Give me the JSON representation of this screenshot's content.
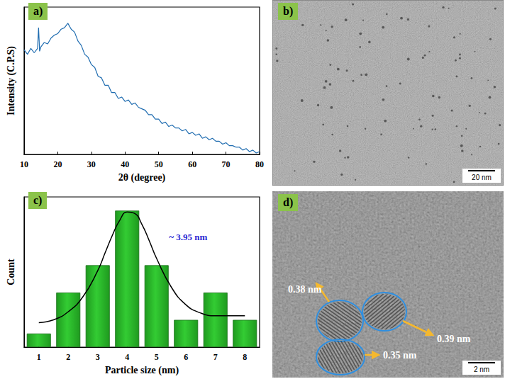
{
  "chart_data": [
    {
      "type": "line",
      "panel_label": "a)",
      "xlabel": "2θ (degree)",
      "ylabel": "Intensity (C.P.S)",
      "x": [
        10,
        11,
        12,
        13,
        14,
        14.3,
        14.6,
        15,
        16,
        17,
        18,
        19,
        20,
        21,
        22,
        23,
        24,
        25,
        26,
        27,
        28,
        29,
        30,
        31,
        32,
        33,
        34,
        35,
        36,
        37,
        38,
        39,
        40,
        41,
        42,
        43,
        44,
        45,
        46,
        47,
        48,
        49,
        50,
        51,
        52,
        53,
        54,
        55,
        56,
        57,
        58,
        59,
        60,
        61,
        62,
        63,
        64,
        65,
        66,
        67,
        68,
        69,
        70,
        71,
        72,
        73,
        74,
        75,
        76,
        77,
        78,
        79,
        80
      ],
      "values": [
        71,
        68,
        72,
        69,
        72,
        86,
        70,
        73,
        76,
        75,
        79,
        81,
        82,
        85,
        86,
        89,
        85,
        83,
        77,
        74,
        68,
        66,
        61,
        59,
        53,
        52,
        47,
        47,
        42,
        42,
        38,
        39,
        36,
        37,
        34,
        35,
        32,
        31,
        30,
        27,
        27,
        24,
        24,
        21,
        22,
        19,
        20,
        18,
        18,
        16,
        17,
        14,
        15,
        13,
        14,
        11,
        12,
        10,
        11,
        9,
        9,
        7,
        8,
        6,
        6,
        5,
        5,
        3,
        4,
        2,
        3,
        1,
        2
      ],
      "color": "#1f6cb0",
      "xlim": [
        10,
        80
      ],
      "xticks": [
        10,
        20,
        30,
        40,
        50,
        60,
        70,
        80
      ],
      "ylim": [
        0,
        100
      ],
      "tick_labels": "x",
      "grid": false
    },
    {
      "type": "bar",
      "panel_label": "c)",
      "xlabel": "Particle size (nm)",
      "ylabel": "Count",
      "annotation": "~ 3.95 nm",
      "series": [
        {
          "type": "bar",
          "x": [
            1,
            2,
            3,
            4,
            5,
            6,
            7,
            8
          ],
          "values": [
            1,
            4,
            6,
            10,
            6,
            2,
            4,
            2
          ],
          "color": "#33cc33"
        },
        {
          "type": "line",
          "x": [
            1,
            1.5,
            2,
            2.5,
            3,
            3.25,
            3.5,
            3.75,
            4,
            4.25,
            4.5,
            4.75,
            5,
            5.5,
            6,
            6.5,
            7,
            7.5,
            8
          ],
          "values": [
            1.8,
            2.0,
            2.6,
            3.7,
            5.6,
            6.9,
            8.2,
            9.3,
            9.9,
            9.8,
            9.0,
            7.8,
            6.5,
            4.4,
            3.1,
            2.5,
            2.3,
            2.3,
            2.3
          ],
          "color": "#000000"
        }
      ],
      "xlim": [
        0.5,
        8.5
      ],
      "xticks": [
        1,
        2,
        3,
        4,
        5,
        6,
        7,
        8
      ],
      "ylim": [
        0,
        11
      ],
      "tick_labels": "x",
      "grid": false
    }
  ],
  "images": [
    {
      "panel_label": "b)",
      "scale_bar": "20 nm"
    },
    {
      "panel_label": "d)",
      "scale_bar": "2 nm",
      "annotations": [
        "0.38 nm",
        "0.39 nm",
        "0.35 nm"
      ]
    }
  ]
}
